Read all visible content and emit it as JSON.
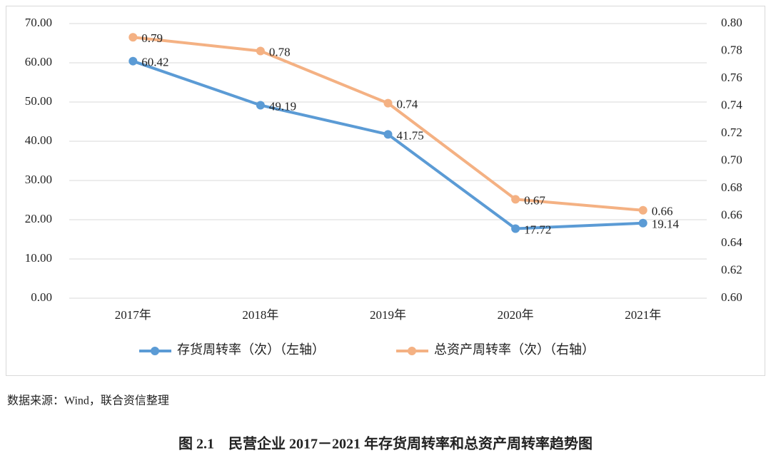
{
  "chart_data": {
    "type": "line",
    "categories": [
      "2017年",
      "2018年",
      "2019年",
      "2020年",
      "2021年"
    ],
    "series": [
      {
        "name": "存货周转率（次）（左轴）",
        "color": "#5b9bd5",
        "values": [
          60.42,
          49.19,
          41.75,
          17.72,
          19.14
        ]
      },
      {
        "name": "总资产周转率（次）（右轴）",
        "color": "#f4b183",
        "axis": "y2",
        "values": [
          0.79,
          0.78,
          0.742,
          0.672,
          0.664
        ],
        "value_labels": [
          "0.79",
          "0.78",
          "0.74",
          "0.67",
          "0.66"
        ]
      }
    ],
    "ylim": [
      0,
      70
    ],
    "yticks": [
      {
        "value": 0,
        "label": "0.00"
      },
      {
        "value": 10,
        "label": "10.00"
      },
      {
        "value": 20,
        "label": "20.00"
      },
      {
        "value": 30,
        "label": "30.00"
      },
      {
        "value": 40,
        "label": "40.00"
      },
      {
        "value": 50,
        "label": "50.00"
      },
      {
        "value": 60,
        "label": "60.00"
      },
      {
        "value": 70,
        "label": "70.00"
      }
    ],
    "y2lim": [
      0.6,
      0.8
    ],
    "y2ticks": [
      {
        "value": 0.6,
        "label": "0.60"
      },
      0.62,
      0.64,
      0.66,
      0.68,
      {
        "value": 0.7,
        "label": "0.70"
      },
      0.72,
      0.74,
      0.76,
      0.78,
      {
        "value": 0.8,
        "label": "0.80"
      }
    ],
    "grid": true,
    "legend": "bottom"
  },
  "source": "数据来源：Wind，联合资信整理",
  "caption": "图 2.1　民营企业 2017－2021 年存货周转率和总资产周转率趋势图"
}
